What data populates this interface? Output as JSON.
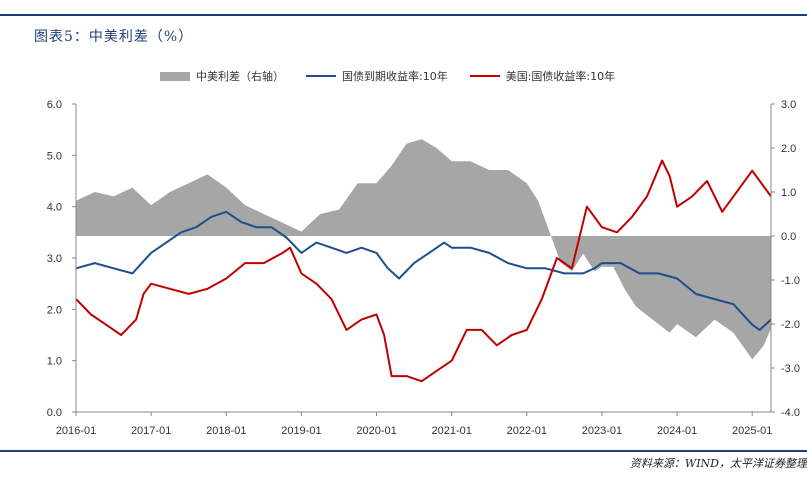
{
  "header": {
    "title": "图表5：中美利差（%）"
  },
  "legend": {
    "spread": "中美利差（右轴）",
    "cn": "国债到期收益率:10年",
    "us": "美国:国债收益率:10年"
  },
  "footer": {
    "source": "资料来源：WIND，太平洋证券整理"
  },
  "colors": {
    "spread": "#a6a6a6",
    "cn": "#1f4e8c",
    "us": "#c00000",
    "accent": "#1f3f7a"
  },
  "chart_data": {
    "type": "line",
    "x_ticks": [
      "2016-01",
      "2017-01",
      "2018-01",
      "2019-01",
      "2020-01",
      "2021-01",
      "2022-01",
      "2023-01",
      "2024-01",
      "2025-01"
    ],
    "y_left": {
      "ticks": [
        "0.0",
        "1.0",
        "2.0",
        "3.0",
        "4.0",
        "5.0",
        "6.0"
      ],
      "lim": [
        0,
        6
      ]
    },
    "y_right": {
      "ticks": [
        "-4.0",
        "-3.0",
        "-2.0",
        "-1.0",
        "0.0",
        "1.0",
        "2.0",
        "3.0"
      ],
      "lim": [
        -4,
        3
      ]
    },
    "series": [
      {
        "name": "中美利差（右轴）",
        "kind": "area",
        "axis": "right",
        "x": [
          2016.0,
          2016.25,
          2016.5,
          2016.75,
          2017.0,
          2017.25,
          2017.5,
          2017.75,
          2018.0,
          2018.25,
          2018.5,
          2018.75,
          2019.0,
          2019.25,
          2019.5,
          2019.75,
          2020.0,
          2020.2,
          2020.4,
          2020.6,
          2020.8,
          2021.0,
          2021.25,
          2021.5,
          2021.75,
          2022.0,
          2022.15,
          2022.3,
          2022.45,
          2022.6,
          2022.75,
          2022.9,
          2023.0,
          2023.15,
          2023.3,
          2023.45,
          2023.6,
          2023.75,
          2023.9,
          2024.0,
          2024.25,
          2024.5,
          2024.75,
          2025.0,
          2025.15,
          2025.25
        ],
        "y": [
          0.8,
          1.0,
          0.9,
          1.1,
          0.7,
          1.0,
          1.2,
          1.4,
          1.1,
          0.7,
          0.5,
          0.3,
          0.1,
          0.5,
          0.6,
          1.2,
          1.2,
          1.6,
          2.1,
          2.2,
          2.0,
          1.7,
          1.7,
          1.5,
          1.5,
          1.2,
          0.8,
          0.1,
          -0.6,
          -0.8,
          -0.4,
          -0.8,
          -0.7,
          -0.7,
          -1.2,
          -1.6,
          -1.8,
          -2.0,
          -2.2,
          -2.0,
          -2.3,
          -1.9,
          -2.2,
          -2.8,
          -2.5,
          -2.1
        ]
      },
      {
        "name": "国债到期收益率:10年",
        "kind": "line",
        "axis": "left",
        "x": [
          2016.0,
          2016.25,
          2016.5,
          2016.75,
          2017.0,
          2017.2,
          2017.4,
          2017.6,
          2017.8,
          2018.0,
          2018.2,
          2018.4,
          2018.6,
          2018.8,
          2019.0,
          2019.2,
          2019.4,
          2019.6,
          2019.8,
          2020.0,
          2020.15,
          2020.3,
          2020.5,
          2020.7,
          2020.9,
          2021.0,
          2021.25,
          2021.5,
          2021.75,
          2022.0,
          2022.25,
          2022.5,
          2022.75,
          2022.9,
          2023.0,
          2023.25,
          2023.5,
          2023.75,
          2024.0,
          2024.25,
          2024.5,
          2024.75,
          2025.0,
          2025.1,
          2025.25
        ],
        "y": [
          2.8,
          2.9,
          2.8,
          2.7,
          3.1,
          3.3,
          3.5,
          3.6,
          3.8,
          3.9,
          3.7,
          3.6,
          3.6,
          3.4,
          3.1,
          3.3,
          3.2,
          3.1,
          3.2,
          3.1,
          2.8,
          2.6,
          2.9,
          3.1,
          3.3,
          3.2,
          3.2,
          3.1,
          2.9,
          2.8,
          2.8,
          2.7,
          2.7,
          2.8,
          2.9,
          2.9,
          2.7,
          2.7,
          2.6,
          2.3,
          2.2,
          2.1,
          1.7,
          1.6,
          1.8
        ]
      },
      {
        "name": "美国:国债收益率:10年",
        "kind": "line",
        "axis": "left",
        "x": [
          2016.0,
          2016.2,
          2016.4,
          2016.6,
          2016.8,
          2016.9,
          2017.0,
          2017.25,
          2017.5,
          2017.75,
          2018.0,
          2018.25,
          2018.5,
          2018.75,
          2018.85,
          2019.0,
          2019.2,
          2019.4,
          2019.6,
          2019.8,
          2020.0,
          2020.1,
          2020.2,
          2020.4,
          2020.6,
          2020.8,
          2021.0,
          2021.2,
          2021.4,
          2021.6,
          2021.8,
          2022.0,
          2022.2,
          2022.4,
          2022.6,
          2022.8,
          2023.0,
          2023.2,
          2023.4,
          2023.6,
          2023.8,
          2023.9,
          2024.0,
          2024.2,
          2024.4,
          2024.6,
          2024.8,
          2025.0,
          2025.1,
          2025.25
        ],
        "y": [
          2.2,
          1.9,
          1.7,
          1.5,
          1.8,
          2.3,
          2.5,
          2.4,
          2.3,
          2.4,
          2.6,
          2.9,
          2.9,
          3.1,
          3.2,
          2.7,
          2.5,
          2.2,
          1.6,
          1.8,
          1.9,
          1.5,
          0.7,
          0.7,
          0.6,
          0.8,
          1.0,
          1.6,
          1.6,
          1.3,
          1.5,
          1.6,
          2.2,
          3.0,
          2.8,
          4.0,
          3.6,
          3.5,
          3.8,
          4.2,
          4.9,
          4.6,
          4.0,
          4.2,
          4.5,
          3.9,
          4.3,
          4.7,
          4.5,
          4.2
        ]
      }
    ],
    "title": "",
    "xlabel": "",
    "ylabel": ""
  }
}
